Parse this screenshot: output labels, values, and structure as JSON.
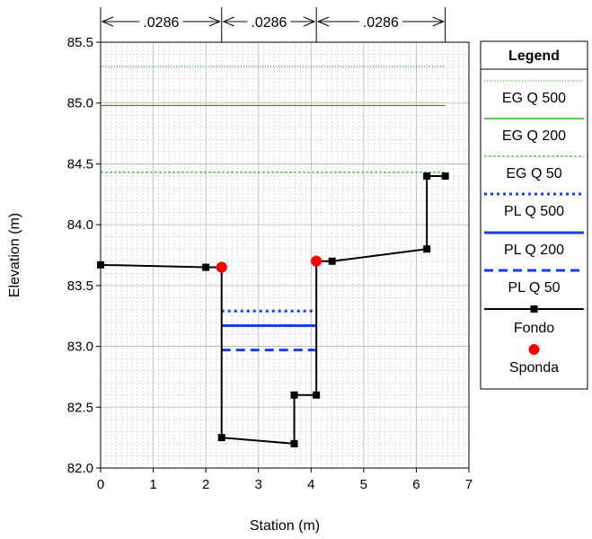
{
  "chart_data": {
    "type": "line",
    "xlabel": "Station (m)",
    "ylabel": "Elevation (m)",
    "xlim": [
      0,
      7
    ],
    "ylim": [
      82.0,
      85.5
    ],
    "x_ticks": [
      "0",
      "1",
      "2",
      "3",
      "4",
      "5",
      "6",
      "7"
    ],
    "y_ticks": [
      "82.0",
      "82.5",
      "83.0",
      "83.5",
      "84.0",
      "84.5",
      "85.0",
      "85.5"
    ],
    "grid": true,
    "legend_title": "Legend",
    "legend_position": "right",
    "manning_n": [
      {
        "label": ".0286",
        "x_start": 0,
        "x_end": 2.3
      },
      {
        "label": ".0286",
        "x_start": 2.3,
        "x_end": 4.1
      },
      {
        "label": ".0286",
        "x_start": 4.1,
        "x_end": 6.55
      }
    ],
    "series": [
      {
        "name": "EG Q 500",
        "color": "#00aa00",
        "style": "dotted",
        "x": [
          0,
          6.55
        ],
        "y": [
          85.3,
          85.3
        ]
      },
      {
        "name": "EG Q 200",
        "color": "#00aa00",
        "style": "solid",
        "x": [
          0,
          6.55
        ],
        "y": [
          84.98,
          84.98
        ]
      },
      {
        "name": "EG Q 50",
        "color": "#00aa00",
        "style": "dashed-fine",
        "x": [
          0,
          6.55
        ],
        "y": [
          84.43,
          84.43
        ]
      },
      {
        "name": "PL Q 500",
        "color": "#1a3fe0",
        "style": "dotted-thick",
        "x": [
          2.3,
          4.1
        ],
        "y": [
          83.29,
          83.29
        ]
      },
      {
        "name": "PL Q 200",
        "color": "#1a3fe0",
        "style": "solid-thick",
        "x": [
          2.3,
          4.1
        ],
        "y": [
          83.17,
          83.17
        ]
      },
      {
        "name": "PL Q 50",
        "color": "#1a3fe0",
        "style": "dashed-thick",
        "x": [
          2.3,
          4.1
        ],
        "y": [
          82.97,
          82.97
        ]
      },
      {
        "name": "Fondo",
        "color": "#000000",
        "style": "solid-markers",
        "x": [
          0,
          2.0,
          2.3,
          2.3,
          3.68,
          3.68,
          4.1,
          4.1,
          4.4,
          6.2,
          6.2,
          6.55
        ],
        "y": [
          83.67,
          83.65,
          83.65,
          82.25,
          82.2,
          82.6,
          82.6,
          83.7,
          83.7,
          83.8,
          84.4,
          84.4
        ]
      },
      {
        "name": "Sponda",
        "color": "#ff0000",
        "style": "points",
        "x": [
          2.3,
          4.1
        ],
        "y": [
          83.65,
          83.7
        ]
      }
    ]
  }
}
